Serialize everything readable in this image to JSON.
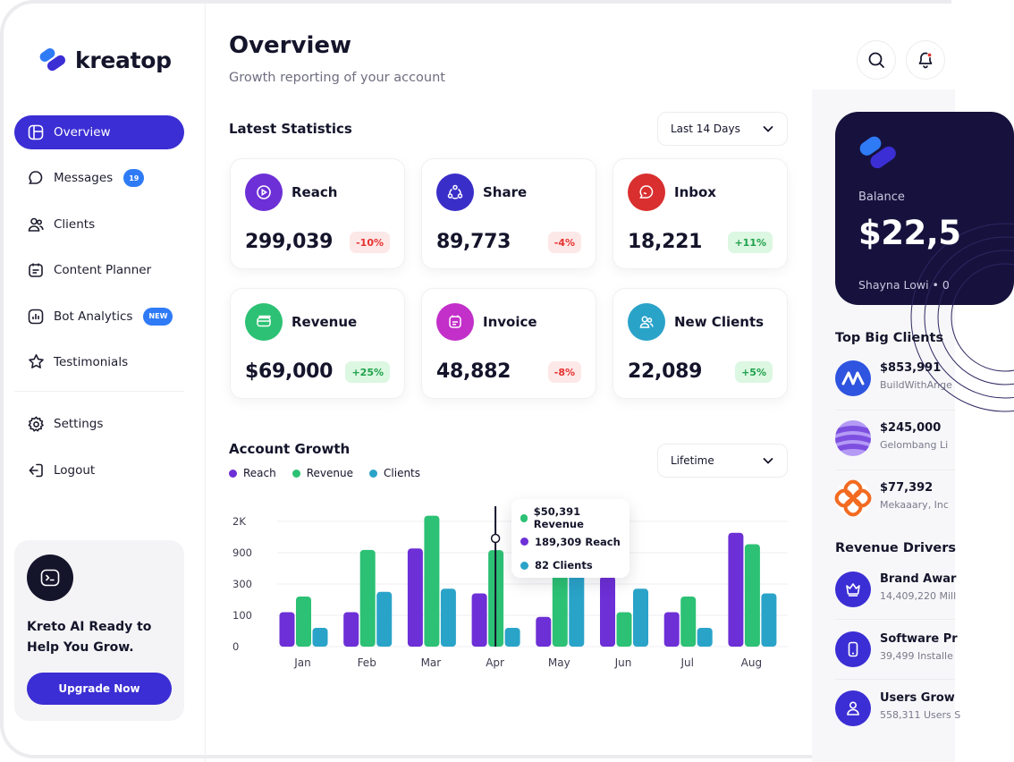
{
  "brand": {
    "name": "kreatop"
  },
  "sidebar": {
    "items": [
      {
        "label": "Overview",
        "icon": "layout-icon",
        "active": true
      },
      {
        "label": "Messages",
        "icon": "chat-icon",
        "badge": "19"
      },
      {
        "label": "Clients",
        "icon": "users-icon"
      },
      {
        "label": "Content Planner",
        "icon": "calendar-icon"
      },
      {
        "label": "Bot Analytics",
        "icon": "analytics-icon",
        "badge": "NEW"
      },
      {
        "label": "Testimonials",
        "icon": "star-icon"
      }
    ],
    "bottom_items": [
      {
        "label": "Settings",
        "icon": "gear-icon"
      },
      {
        "label": "Logout",
        "icon": "logout-icon"
      }
    ],
    "promo": {
      "title": "Kreto AI Ready to Help You Grow.",
      "button": "Upgrade Now"
    }
  },
  "header": {
    "title": "Overview",
    "subtitle": "Growth reporting of your account"
  },
  "statistics": {
    "title": "Latest Statistics",
    "range": "Last 14 Days",
    "cards": [
      {
        "label": "Reach",
        "value": "299,039",
        "change": "-10%",
        "trend": "down",
        "color": "#6d2fd6",
        "icon": "play-icon"
      },
      {
        "label": "Share",
        "value": "89,773",
        "change": "-4%",
        "trend": "down",
        "color": "#3a2ec9",
        "icon": "share-icon"
      },
      {
        "label": "Inbox",
        "value": "18,221",
        "change": "+11%",
        "trend": "up",
        "color": "#d92f2f",
        "icon": "inbox-icon"
      },
      {
        "label": "Revenue",
        "value": "$69,000",
        "change": "+25%",
        "trend": "up",
        "color": "#2cc174",
        "icon": "card-icon"
      },
      {
        "label": "Invoice",
        "value": "48,882",
        "change": "-8%",
        "trend": "down",
        "color": "#c22fc9",
        "icon": "invoice-icon"
      },
      {
        "label": "New Clients",
        "value": "22,089",
        "change": "+5%",
        "trend": "up",
        "color": "#2aa3c9",
        "icon": "clients-icon"
      }
    ]
  },
  "growth": {
    "title": "Account Growth",
    "range": "Lifetime",
    "tooltip": {
      "revenue": "$50,391 Revenue",
      "reach": "189,309 Reach",
      "clients": "82 Clients"
    }
  },
  "chart_data": {
    "type": "bar",
    "categories": [
      "Jan",
      "Feb",
      "Mar",
      "Apr",
      "May",
      "Jun",
      "Jul",
      "Aug"
    ],
    "y_ticks": [
      "0",
      "100",
      "300",
      "900",
      "2K"
    ],
    "series": [
      {
        "name": "Reach",
        "color": "#6d2fd6",
        "values": [
          120,
          120,
          1050,
          240,
          95,
          450,
          120,
          1600
        ]
      },
      {
        "name": "Revenue",
        "color": "#2cc174",
        "values": [
          220,
          1000,
          2200,
          990,
          640,
          120,
          220,
          1200
        ]
      },
      {
        "name": "Clients",
        "color": "#2aa3c9",
        "values": [
          60,
          250,
          270,
          60,
          600,
          270,
          60,
          240
        ]
      }
    ],
    "highlight_index": 3
  },
  "right_panel": {
    "balance": {
      "label": "Balance",
      "value": "$22,5",
      "owner": "Shayna Lowi • 0"
    },
    "top_clients": {
      "title": "Top Big Clients",
      "items": [
        {
          "amount": "$853,991",
          "name": "BuildWithAnge",
          "color": "#2f54e0",
          "icon": "wave-logo-icon"
        },
        {
          "amount": "$245,000",
          "name": "Gelombang Li",
          "color": "#9a6ef0",
          "icon": "stripes-logo-icon"
        },
        {
          "amount": "$77,392",
          "name": "Mekaaary, Inc",
          "color": "#f26b21",
          "icon": "flower-logo-icon"
        }
      ]
    },
    "drivers": {
      "title": "Revenue Drivers",
      "items": [
        {
          "name": "Brand Awar",
          "value": "14,409,220 Mill",
          "icon": "crown-icon"
        },
        {
          "name": "Software Pr",
          "value": "39,499 Installe",
          "icon": "phone-icon"
        },
        {
          "name": "Users Grow",
          "value": "558,311 Users S",
          "icon": "user-icon"
        }
      ]
    }
  }
}
